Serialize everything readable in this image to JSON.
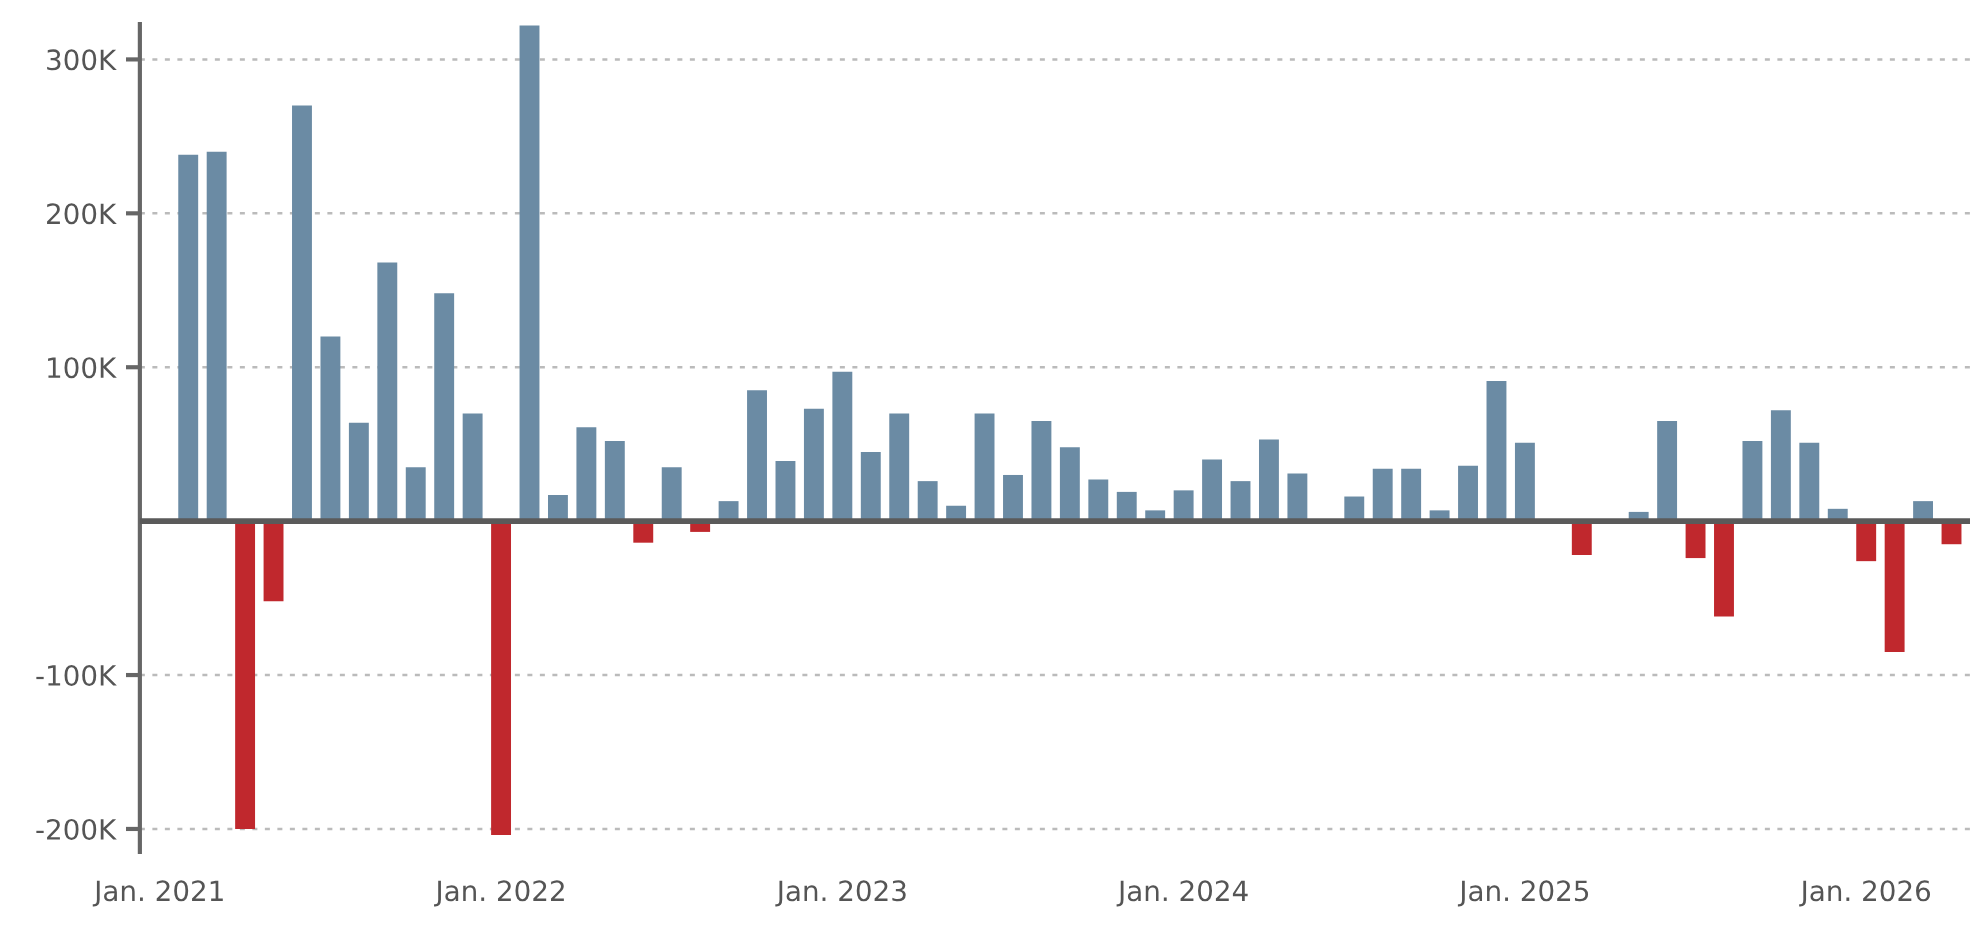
{
  "chart_data": {
    "type": "bar",
    "categories": [
      "Jan. 2021",
      null,
      null,
      null,
      null,
      null,
      null,
      null,
      null,
      null,
      null,
      null,
      "Jan. 2022",
      null,
      null,
      null,
      null,
      null,
      null,
      null,
      null,
      null,
      null,
      null,
      "Jan. 2023",
      null,
      null,
      null,
      null,
      null,
      null,
      null,
      null,
      null,
      null,
      null,
      "Jan. 2024",
      null,
      null,
      null,
      null,
      null,
      null,
      null,
      null,
      null,
      null,
      null,
      "Jan. 2025",
      null,
      null,
      null,
      null,
      null,
      null,
      null,
      null,
      null,
      null,
      null,
      "Jan. 2026",
      null,
      null,
      null
    ],
    "values": [
      null,
      238000,
      240000,
      -200000,
      -52000,
      270000,
      120000,
      64000,
      168000,
      35000,
      148000,
      70000,
      -204000,
      322000,
      17000,
      61000,
      52000,
      -14000,
      35000,
      -7000,
      13000,
      85000,
      39000,
      73000,
      97000,
      45000,
      70000,
      26000,
      10000,
      70000,
      30000,
      65000,
      48000,
      27000,
      19000,
      7000,
      20000,
      40000,
      26000,
      53000,
      31000,
      0,
      16000,
      34000,
      34000,
      7000,
      36000,
      91000,
      51000,
      0,
      -22000,
      0,
      6000,
      65000,
      -24000,
      -62000,
      52000,
      72000,
      51000,
      8000,
      -26000,
      -85000,
      13000,
      -15000
    ],
    "colors": [
      "#6b8ba4",
      "#6b8ba4",
      "#6b8ba4",
      "#c0282d",
      "#c0282d",
      "#6b8ba4",
      "#6b8ba4",
      "#6b8ba4",
      "#6b8ba4",
      "#6b8ba4",
      "#6b8ba4",
      "#6b8ba4",
      "#c0282d",
      "#6b8ba4",
      "#6b8ba4",
      "#6b8ba4",
      "#6b8ba4",
      "#c0282d",
      "#6b8ba4",
      "#c0282d",
      "#6b8ba4",
      "#6b8ba4",
      "#6b8ba4",
      "#6b8ba4",
      "#6b8ba4",
      "#6b8ba4",
      "#6b8ba4",
      "#6b8ba4",
      "#6b8ba4",
      "#6b8ba4",
      "#6b8ba4",
      "#6b8ba4",
      "#6b8ba4",
      "#6b8ba4",
      "#6b8ba4",
      "#6b8ba4",
      "#6b8ba4",
      "#6b8ba4",
      "#6b8ba4",
      "#6b8ba4",
      "#6b8ba4",
      "#6b8ba4",
      "#6b8ba4",
      "#6b8ba4",
      "#6b8ba4",
      "#6b8ba4",
      "#6b8ba4",
      "#6b8ba4",
      "#6b8ba4",
      "#6b8ba4",
      "#c0282d",
      "#6b8ba4",
      "#6b8ba4",
      "#6b8ba4",
      "#c0282d",
      "#c0282d",
      "#6b8ba4",
      "#6b8ba4",
      "#6b8ba4",
      "#6b8ba4",
      "#c0282d",
      "#c0282d",
      "#6b8ba4",
      "#c0282d"
    ],
    "ylim": [
      -215000,
      323000
    ],
    "yticks": [
      {
        "value": -200000,
        "label": "-200K"
      },
      {
        "value": -100000,
        "label": "-100K"
      },
      {
        "value": 100000,
        "label": "100K"
      },
      {
        "value": 200000,
        "label": "200K"
      },
      {
        "value": 300000,
        "label": "300K"
      }
    ],
    "ref_lines": [
      {
        "axis": "y",
        "value": 0,
        "label": null,
        "color": "#5a5a5a"
      }
    ],
    "grid": "y",
    "legend": false
  }
}
